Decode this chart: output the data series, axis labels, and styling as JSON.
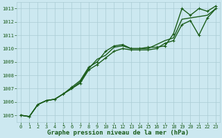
{
  "bg_color": "#cce8f0",
  "grid_color": "#aaccd4",
  "line_color": "#1a5c1a",
  "title": "Graphe pression niveau de la mer (hPa)",
  "ylim": [
    1004.5,
    1013.5
  ],
  "xlim": [
    -0.5,
    23.5
  ],
  "yticks": [
    1005,
    1006,
    1007,
    1008,
    1009,
    1010,
    1011,
    1012,
    1013
  ],
  "xticks": [
    0,
    1,
    2,
    3,
    4,
    5,
    6,
    7,
    8,
    9,
    10,
    11,
    12,
    13,
    14,
    15,
    16,
    17,
    18,
    19,
    20,
    21,
    22,
    23
  ],
  "series": [
    [
      1005.0,
      1004.9,
      1005.8,
      1006.1,
      1006.2,
      1006.6,
      1007.1,
      1007.6,
      1008.6,
      1009.0,
      1009.8,
      1010.2,
      1010.3,
      1010.0,
      1010.0,
      1010.1,
      1010.1,
      1010.2,
      1011.1,
      1013.0,
      1012.5,
      1013.0,
      1012.8,
      1013.2
    ],
    [
      1005.0,
      1004.9,
      1005.8,
      1006.1,
      1006.2,
      1006.6,
      1007.0,
      1007.5,
      1008.5,
      1009.2,
      1009.5,
      1010.1,
      1010.2,
      1010.0,
      1010.0,
      1010.0,
      1010.3,
      1010.6,
      1010.8,
      1012.2,
      1012.3,
      1012.4,
      1012.5,
      1013.0
    ],
    [
      1005.0,
      1004.9,
      1005.8,
      1006.1,
      1006.2,
      1006.6,
      1007.0,
      1007.4,
      1008.4,
      1008.8,
      1009.3,
      1009.8,
      1010.0,
      1009.9,
      1009.9,
      1009.9,
      1010.0,
      1010.4,
      1010.6,
      1011.8,
      1012.1,
      1011.0,
      1012.3,
      1013.0
    ]
  ],
  "show_markers": [
    true,
    false,
    true
  ],
  "marker_style": "+",
  "marker_size": 3.5,
  "linewidths": [
    1.0,
    1.0,
    1.0
  ],
  "tick_fontsize": 5,
  "label_fontsize": 6.5
}
